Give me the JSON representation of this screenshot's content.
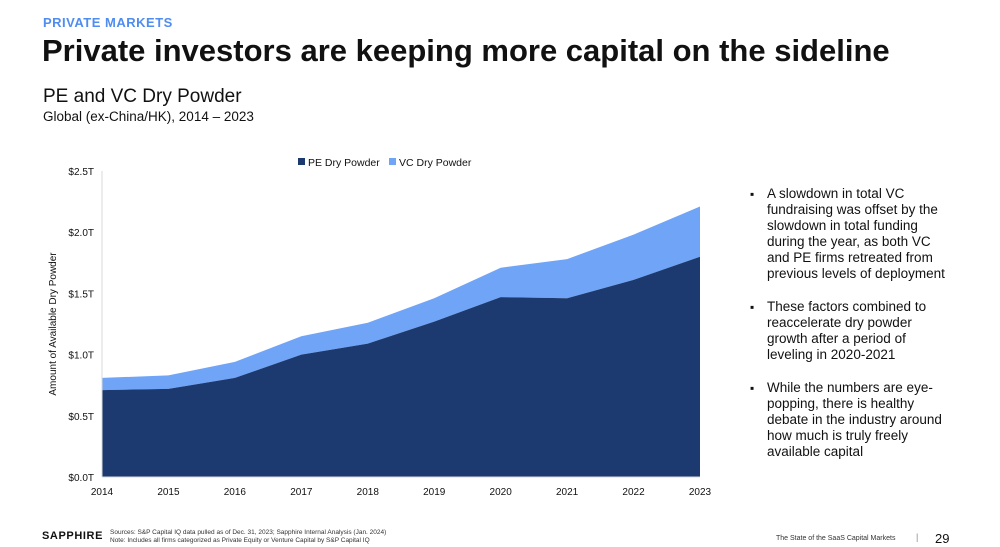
{
  "header": {
    "eyebrow": "PRIVATE MARKETS",
    "title": "Private investors are keeping more capital on the sideline"
  },
  "colors": {
    "accent": "#4f8df0",
    "pe": "#1c3a70",
    "vc": "#6fa4f7"
  },
  "chart_data": {
    "type": "area",
    "stacked": true,
    "title": "PE and VC Dry Powder",
    "subtitle": "Global (ex-China/HK), 2014 – 2023",
    "xlabel": "",
    "ylabel": "Amount of Available Dry Powder",
    "x": [
      "2014",
      "2015",
      "2016",
      "2017",
      "2018",
      "2019",
      "2020",
      "2021",
      "2022",
      "2023"
    ],
    "ylim": [
      0,
      2.5
    ],
    "y_ticks": [
      {
        "value": 0,
        "label": "$0.0T"
      },
      {
        "value": 0.5,
        "label": "$0.5T"
      },
      {
        "value": 1.0,
        "label": "$1.0T"
      },
      {
        "value": 1.5,
        "label": "$1.5T"
      },
      {
        "value": 2.0,
        "label": "$2.0T"
      },
      {
        "value": 2.5,
        "label": "$2.5T"
      }
    ],
    "legend_position": "top",
    "series": [
      {
        "name": "PE Dry Powder",
        "color": "#1c3a70",
        "values": [
          0.71,
          0.72,
          0.81,
          1.0,
          1.09,
          1.27,
          1.47,
          1.46,
          1.61,
          1.8
        ]
      },
      {
        "name": "VC Dry Powder",
        "color": "#6fa4f7",
        "values": [
          0.1,
          0.11,
          0.13,
          0.15,
          0.17,
          0.19,
          0.24,
          0.32,
          0.37,
          0.41
        ]
      }
    ]
  },
  "bullets": [
    "A slowdown in total VC fundraising was offset by the slowdown in total funding during the year, as both VC and PE firms retreated from previous levels of deployment",
    "These factors combined to reaccelerate dry powder growth after a period of leveling in 2020-2021",
    "While the numbers are eye-popping, there is healthy debate in the industry around how much is truly freely available capital"
  ],
  "footer": {
    "logo": "SAPPHIRE",
    "sources": "Sources: S&P Capital IQ data pulled as of Dec. 31, 2023; Sapphire Internal Analysis (Jan. 2024)",
    "note": "Note: Includes all firms categorized as Private Equity or Venture Capital by S&P Capital IQ",
    "deck_title": "The State of the SaaS Capital Markets",
    "separator": "|",
    "page_number": "29"
  }
}
